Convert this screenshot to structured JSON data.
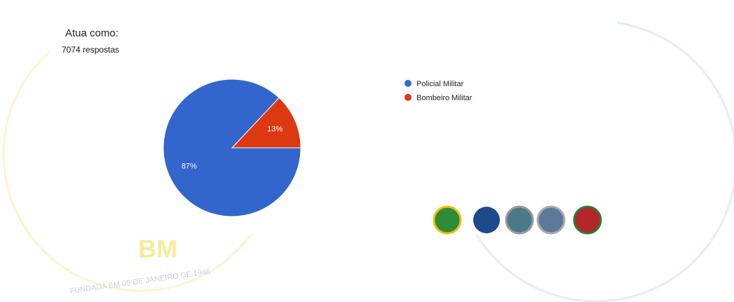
{
  "chart_data": {
    "type": "pie",
    "title": "Atua como:",
    "subtitle": "7074 respostas",
    "categories": [
      "Policial Militar",
      "Bombeiro Militar"
    ],
    "values": [
      87,
      13
    ],
    "value_labels": [
      "87%",
      "13%"
    ],
    "colors": [
      "#3366cc",
      "#dc3912"
    ],
    "legend": "right"
  },
  "background": {
    "badge": "BM",
    "founding": "FUNDADA EM 05 DE JANEIRO DE 1946"
  }
}
